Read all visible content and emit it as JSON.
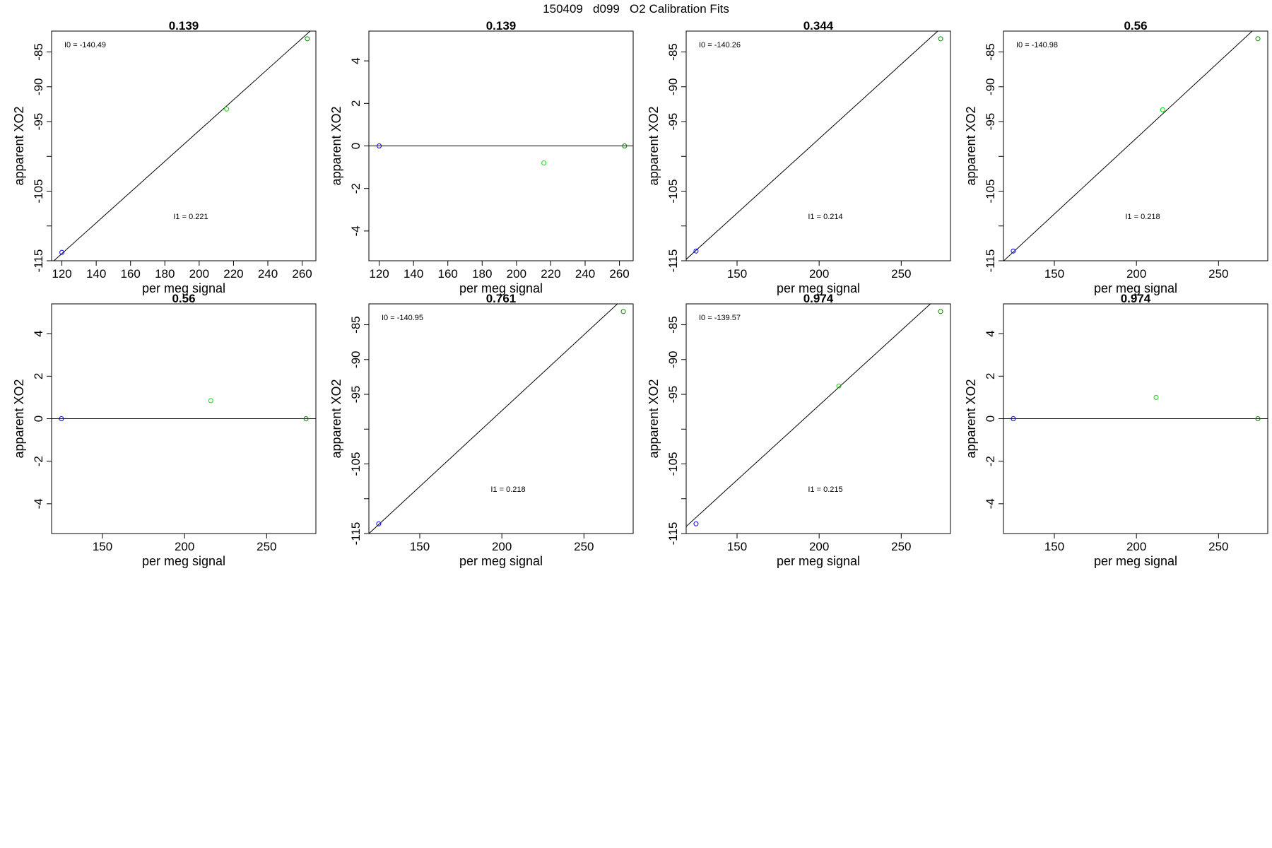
{
  "figure_title": "150409   d099   O2 Calibration Fits",
  "chart_data": [
    {
      "type": "scatter",
      "title": "0.139",
      "xlabel": "per meg signal",
      "ylabel": "apparent XO2",
      "xlim": [
        114,
        268
      ],
      "ylim": [
        -115,
        -82
      ],
      "xticks": [
        120,
        140,
        160,
        180,
        200,
        220,
        240,
        260
      ],
      "yticks": [
        -115,
        -110,
        -105,
        -100,
        -95,
        -90,
        -85
      ],
      "ytick_labels": [
        "-115",
        "",
        "-105",
        "",
        "-95",
        "-90",
        "-85"
      ],
      "points": [
        {
          "x": 120,
          "y": -113.8,
          "color": "#0000ff"
        },
        {
          "x": 216,
          "y": -93.2,
          "color": "#00dd00"
        },
        {
          "x": 263,
          "y": -83.1,
          "color": "#008800"
        }
      ],
      "fit_line": {
        "intercept": -140.49,
        "slope": 0.221
      },
      "annotations": [
        "I0 =  -140.49",
        "I1 =  0.221"
      ]
    },
    {
      "type": "scatter",
      "title": "0.139",
      "xlabel": "per meg signal",
      "ylabel": "apparent XO2",
      "xlim": [
        114,
        268
      ],
      "ylim": [
        -5.4,
        5.4
      ],
      "xticks": [
        120,
        140,
        160,
        180,
        200,
        220,
        240,
        260
      ],
      "yticks": [
        -4,
        -2,
        0,
        2,
        4
      ],
      "ytick_labels": [
        "-4",
        "-2",
        "0",
        "2",
        "4"
      ],
      "points": [
        {
          "x": 120,
          "y": 0,
          "color": "#0000ff"
        },
        {
          "x": 216,
          "y": -0.8,
          "color": "#00dd00"
        },
        {
          "x": 263,
          "y": 0,
          "color": "#008800"
        }
      ],
      "fit_line": {
        "intercept": 0,
        "slope": 0
      },
      "annotations": []
    },
    {
      "type": "scatter",
      "title": "0.344",
      "xlabel": "per meg signal",
      "ylabel": "apparent XO2",
      "xlim": [
        119,
        280
      ],
      "ylim": [
        -115,
        -82
      ],
      "xticks": [
        150,
        200,
        250
      ],
      "yticks": [
        -115,
        -110,
        -105,
        -100,
        -95,
        -90,
        -85
      ],
      "ytick_labels": [
        "-115",
        "",
        "-105",
        "",
        "-95",
        "-90",
        "-85"
      ],
      "points": [
        {
          "x": 125,
          "y": -113.6,
          "color": "#0000ff"
        },
        {
          "x": 274,
          "y": -83.1,
          "color": "#008800"
        }
      ],
      "fit_line": {
        "intercept": -140.26,
        "slope": 0.214
      },
      "annotations": [
        "I0 =  -140.26",
        "I1 =  0.214"
      ]
    },
    {
      "type": "scatter",
      "title": "0.56",
      "xlabel": "per meg signal",
      "ylabel": "apparent XO2",
      "xlim": [
        119,
        280
      ],
      "ylim": [
        -115,
        -82
      ],
      "xticks": [
        150,
        200,
        250
      ],
      "yticks": [
        -115,
        -110,
        -105,
        -100,
        -95,
        -90,
        -85
      ],
      "ytick_labels": [
        "-115",
        "",
        "-105",
        "",
        "-95",
        "-90",
        "-85"
      ],
      "points": [
        {
          "x": 125,
          "y": -113.6,
          "color": "#0000ff"
        },
        {
          "x": 216,
          "y": -93.3,
          "color": "#00dd00"
        },
        {
          "x": 274,
          "y": -83.1,
          "color": "#008800"
        }
      ],
      "fit_line": {
        "intercept": -140.98,
        "slope": 0.218
      },
      "annotations": [
        "I0 =  -140.98",
        "I1 =  0.218"
      ]
    },
    {
      "type": "scatter",
      "title": "0.56",
      "xlabel": "per meg signal",
      "ylabel": "apparent XO2",
      "xlim": [
        119,
        280
      ],
      "ylim": [
        -5.4,
        5.4
      ],
      "xticks": [
        150,
        200,
        250
      ],
      "yticks": [
        -4,
        -2,
        0,
        2,
        4
      ],
      "ytick_labels": [
        "-4",
        "-2",
        "0",
        "2",
        "4"
      ],
      "points": [
        {
          "x": 125,
          "y": 0,
          "color": "#0000ff"
        },
        {
          "x": 216,
          "y": 0.85,
          "color": "#00dd00"
        },
        {
          "x": 274,
          "y": 0,
          "color": "#008800"
        }
      ],
      "fit_line": {
        "intercept": 0,
        "slope": 0
      },
      "annotations": []
    },
    {
      "type": "scatter",
      "title": "0.761",
      "xlabel": "per meg signal",
      "ylabel": "apparent XO2",
      "xlim": [
        119,
        280
      ],
      "ylim": [
        -115,
        -82
      ],
      "xticks": [
        150,
        200,
        250
      ],
      "yticks": [
        -115,
        -110,
        -105,
        -100,
        -95,
        -90,
        -85
      ],
      "ytick_labels": [
        "-115",
        "",
        "-105",
        "",
        "-95",
        "-90",
        "-85"
      ],
      "points": [
        {
          "x": 125,
          "y": -113.6,
          "color": "#0000ff"
        },
        {
          "x": 274,
          "y": -83.1,
          "color": "#008800"
        }
      ],
      "fit_line": {
        "intercept": -140.95,
        "slope": 0.218
      },
      "annotations": [
        "I0 =  -140.95",
        "I1 =  0.218"
      ]
    },
    {
      "type": "scatter",
      "title": "0.974",
      "xlabel": "per meg signal",
      "ylabel": "apparent XO2",
      "xlim": [
        119,
        280
      ],
      "ylim": [
        -115,
        -82
      ],
      "xticks": [
        150,
        200,
        250
      ],
      "yticks": [
        -115,
        -110,
        -105,
        -100,
        -95,
        -90,
        -85
      ],
      "ytick_labels": [
        "-115",
        "",
        "-105",
        "",
        "-95",
        "-90",
        "-85"
      ],
      "points": [
        {
          "x": 125,
          "y": -113.6,
          "color": "#0000ff"
        },
        {
          "x": 212,
          "y": -93.8,
          "color": "#00dd00"
        },
        {
          "x": 274,
          "y": -83.1,
          "color": "#008800"
        }
      ],
      "fit_line": {
        "intercept": -139.57,
        "slope": 0.215
      },
      "annotations": [
        "I0 =  -139.57",
        "I1 =  0.215"
      ]
    },
    {
      "type": "scatter",
      "title": "0.974",
      "xlabel": "per meg signal",
      "ylabel": "apparent XO2",
      "xlim": [
        119,
        280
      ],
      "ylim": [
        -5.4,
        5.4
      ],
      "xticks": [
        150,
        200,
        250
      ],
      "yticks": [
        -4,
        -2,
        0,
        2,
        4
      ],
      "ytick_labels": [
        "-4",
        "-2",
        "0",
        "2",
        "4"
      ],
      "points": [
        {
          "x": 125,
          "y": 0,
          "color": "#0000ff"
        },
        {
          "x": 212,
          "y": 1.0,
          "color": "#00dd00"
        },
        {
          "x": 274,
          "y": 0,
          "color": "#008800"
        }
      ],
      "fit_line": {
        "intercept": 0,
        "slope": 0
      },
      "annotations": []
    }
  ]
}
